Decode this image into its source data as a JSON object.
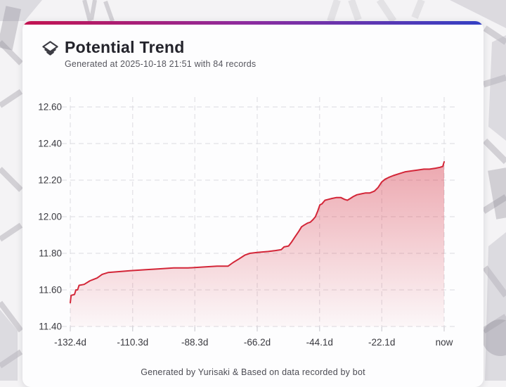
{
  "header": {
    "title": "Potential Trend",
    "subtitle": "Generated at 2025-10-18 21:51 with 84 records",
    "icon": "layers-diamond-icon"
  },
  "footer": {
    "credit": "Generated by Yurisaki & Based on data recorded by bot"
  },
  "colors": {
    "accent_bar_left": "#c31350",
    "accent_bar_mid": "#8e2b9e",
    "accent_bar_right": "#3340c4",
    "line": "#d32638",
    "fill": "#d32638",
    "grid": "#dcdbe0",
    "tick_text": "#3a3a40"
  },
  "chart_data": {
    "type": "area",
    "title": "Potential Trend",
    "xlabel": "",
    "ylabel": "",
    "grid": "dashed",
    "legend": "none",
    "xlim": [
      -132.4,
      0
    ],
    "ylim": [
      11.4,
      12.6
    ],
    "x_unit": "days",
    "x_ticks": [
      {
        "label": "-132.4d",
        "value": -132.4
      },
      {
        "label": "-110.3d",
        "value": -110.3
      },
      {
        "label": "-88.3d",
        "value": -88.3
      },
      {
        "label": "-66.2d",
        "value": -66.2
      },
      {
        "label": "-44.1d",
        "value": -44.1
      },
      {
        "label": "-22.1d",
        "value": -22.1
      },
      {
        "label": "now",
        "value": 0
      }
    ],
    "y_ticks": [
      {
        "label": "11.40",
        "value": 11.4
      },
      {
        "label": "11.60",
        "value": 11.6
      },
      {
        "label": "11.80",
        "value": 11.8
      },
      {
        "label": "12.00",
        "value": 12.0
      },
      {
        "label": "12.20",
        "value": 12.2
      },
      {
        "label": "12.40",
        "value": 12.4
      },
      {
        "label": "12.60",
        "value": 12.6
      }
    ],
    "series": [
      {
        "name": "potential",
        "points": [
          [
            -132.4,
            11.53
          ],
          [
            -132.1,
            11.57
          ],
          [
            -130.9,
            11.575
          ],
          [
            -130.4,
            11.6
          ],
          [
            -129.8,
            11.6
          ],
          [
            -129.3,
            11.625
          ],
          [
            -127.5,
            11.63
          ],
          [
            -125.4,
            11.65
          ],
          [
            -122.9,
            11.665
          ],
          [
            -121.1,
            11.685
          ],
          [
            -119.0,
            11.695
          ],
          [
            -115.1,
            11.7
          ],
          [
            -111.3,
            11.705
          ],
          [
            -106.1,
            11.71
          ],
          [
            -101.0,
            11.715
          ],
          [
            -95.8,
            11.72
          ],
          [
            -90.7,
            11.72
          ],
          [
            -85.5,
            11.725
          ],
          [
            -80.4,
            11.73
          ],
          [
            -76.5,
            11.73
          ],
          [
            -74.7,
            11.75
          ],
          [
            -72.6,
            11.77
          ],
          [
            -70.6,
            11.79
          ],
          [
            -68.8,
            11.8
          ],
          [
            -66.2,
            11.805
          ],
          [
            -62.3,
            11.81
          ],
          [
            -59.8,
            11.815
          ],
          [
            -57.7,
            11.82
          ],
          [
            -56.7,
            11.835
          ],
          [
            -55.1,
            11.84
          ],
          [
            -54.1,
            11.86
          ],
          [
            -52.8,
            11.89
          ],
          [
            -51.5,
            11.92
          ],
          [
            -50.5,
            11.945
          ],
          [
            -49.5,
            11.955
          ],
          [
            -48.4,
            11.965
          ],
          [
            -47.4,
            11.97
          ],
          [
            -46.4,
            11.985
          ],
          [
            -45.6,
            12.0
          ],
          [
            -44.8,
            12.03
          ],
          [
            -44.0,
            12.065
          ],
          [
            -43.3,
            12.07
          ],
          [
            -42.2,
            12.09
          ],
          [
            -41.0,
            12.095
          ],
          [
            -39.7,
            12.1
          ],
          [
            -38.1,
            12.105
          ],
          [
            -36.6,
            12.105
          ],
          [
            -35.3,
            12.095
          ],
          [
            -34.3,
            12.09
          ],
          [
            -33.2,
            12.1
          ],
          [
            -32.2,
            12.11
          ],
          [
            -30.9,
            12.12
          ],
          [
            -29.4,
            12.125
          ],
          [
            -27.8,
            12.13
          ],
          [
            -26.3,
            12.13
          ],
          [
            -24.7,
            12.14
          ],
          [
            -23.4,
            12.16
          ],
          [
            -22.1,
            12.19
          ],
          [
            -20.9,
            12.205
          ],
          [
            -19.6,
            12.215
          ],
          [
            -18.0,
            12.225
          ],
          [
            -16.0,
            12.235
          ],
          [
            -13.9,
            12.245
          ],
          [
            -11.8,
            12.25
          ],
          [
            -9.5,
            12.255
          ],
          [
            -7.2,
            12.26
          ],
          [
            -5.2,
            12.26
          ],
          [
            -3.1,
            12.265
          ],
          [
            -1.5,
            12.27
          ],
          [
            -0.5,
            12.275
          ],
          [
            0,
            12.3
          ]
        ]
      }
    ]
  }
}
